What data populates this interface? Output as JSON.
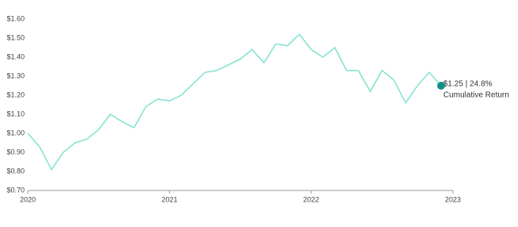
{
  "chart_data": {
    "type": "line",
    "x": [
      2020,
      2020.083,
      2020.167,
      2020.25,
      2020.333,
      2020.417,
      2020.5,
      2020.583,
      2020.667,
      2020.75,
      2020.833,
      2020.917,
      2021,
      2021.083,
      2021.167,
      2021.25,
      2021.333,
      2021.417,
      2021.5,
      2021.583,
      2021.667,
      2021.75,
      2021.833,
      2021.917,
      2022,
      2022.083,
      2022.167,
      2022.25,
      2022.333,
      2022.417,
      2022.5,
      2022.583,
      2022.667,
      2022.75,
      2022.833,
      2022.917
    ],
    "series": [
      {
        "name": "Cumulative Return",
        "color": "#86e3d2",
        "values": [
          1.0,
          0.93,
          0.81,
          0.9,
          0.95,
          0.97,
          1.02,
          1.1,
          1.06,
          1.03,
          1.14,
          1.18,
          1.17,
          1.2,
          1.26,
          1.32,
          1.33,
          1.36,
          1.39,
          1.44,
          1.37,
          1.47,
          1.46,
          1.52,
          1.44,
          1.4,
          1.45,
          1.33,
          1.33,
          1.22,
          1.33,
          1.28,
          1.16,
          1.25,
          1.32,
          1.25
        ]
      }
    ],
    "end_marker_color": "#128f8b",
    "annotation": {
      "value_line": "$1.25 | 24.8%",
      "label": "Cumulative Return"
    },
    "xlim": [
      2020,
      2023
    ],
    "xticks": [
      2020,
      2021,
      2022,
      2023
    ],
    "ylim": [
      0.7,
      1.6
    ],
    "yticks": [
      {
        "value": 0.7,
        "label": "$0.70"
      },
      {
        "value": 0.8,
        "label": "$0.80"
      },
      {
        "value": 0.9,
        "label": "$0.90"
      },
      {
        "value": 1.0,
        "label": "$1.00"
      },
      {
        "value": 1.1,
        "label": "$1.10"
      },
      {
        "value": 1.2,
        "label": "$1.20"
      },
      {
        "value": 1.3,
        "label": "$1.30"
      },
      {
        "value": 1.4,
        "label": "$1.40"
      },
      {
        "value": 1.5,
        "label": "$1.50"
      },
      {
        "value": 1.6,
        "label": "$1.60"
      }
    ],
    "grid": false
  }
}
